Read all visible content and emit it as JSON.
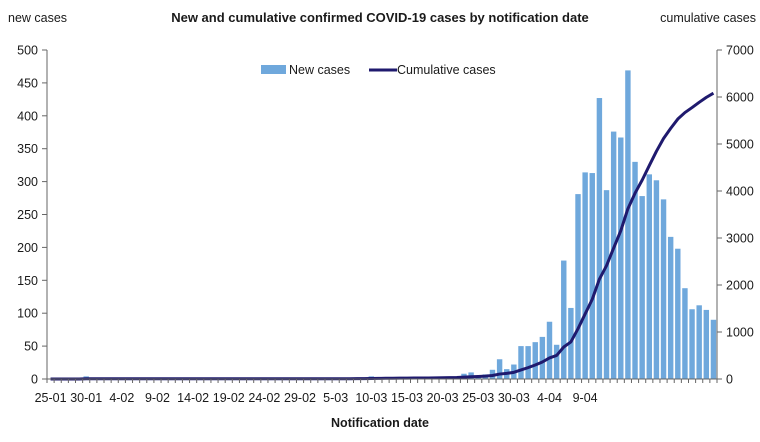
{
  "chart_data": {
    "type": "bar+line",
    "title": "New and cumulative confirmed COVID-19 cases by notification date",
    "y_left_label": "new cases",
    "y_right_label": "cumulative cases",
    "xlabel": "Notification date",
    "x_start": "25-01",
    "x_end": "9-04",
    "x_ticks": [
      "25-01",
      "30-01",
      "4-02",
      "9-02",
      "14-02",
      "19-02",
      "24-02",
      "29-02",
      "5-03",
      "10-03",
      "15-03",
      "20-03",
      "25-03",
      "30-03",
      "4-04",
      "9-04"
    ],
    "y_left_ticks": [
      0,
      50,
      100,
      150,
      200,
      250,
      300,
      350,
      400,
      450,
      500
    ],
    "y_right_ticks": [
      0,
      1000,
      2000,
      3000,
      4000,
      5000,
      6000,
      7000
    ],
    "ylim_left": [
      0,
      500
    ],
    "ylim_right": [
      0,
      7000
    ],
    "grid": false,
    "legend": {
      "placement": "top-center",
      "bar_label": "New cases",
      "line_label": "Cumulative cases"
    },
    "colors": {
      "bar": "#6fa8dc",
      "line": "#1f1a6e",
      "axis": "#666666"
    },
    "series": [
      {
        "name": "New cases",
        "type": "bar",
        "values": [
          0,
          0,
          0,
          0,
          0,
          4,
          0,
          0,
          0,
          0,
          0,
          0,
          0,
          0,
          0,
          0,
          0,
          0,
          0,
          0,
          0,
          0,
          0,
          0,
          0,
          0,
          0,
          0,
          0,
          0,
          0,
          0,
          0,
          0,
          0,
          0,
          0,
          0,
          0,
          0,
          1,
          0,
          1,
          1,
          1,
          4,
          2,
          1,
          1,
          2,
          1,
          1,
          1,
          1,
          2,
          2,
          3,
          2,
          8,
          10,
          5,
          7,
          14,
          30,
          15,
          22,
          50,
          50,
          56,
          64,
          87,
          52,
          180,
          108,
          281,
          314,
          313,
          427,
          287,
          376,
          367,
          469,
          330,
          278,
          311,
          302,
          273,
          216,
          198,
          138,
          106,
          112,
          105,
          90
        ]
      },
      {
        "name": "Cumulative cases",
        "type": "line",
        "values": [
          0,
          0,
          0,
          0,
          0,
          4,
          4,
          4,
          4,
          4,
          4,
          4,
          4,
          4,
          4,
          4,
          4,
          4,
          4,
          4,
          4,
          4,
          4,
          4,
          4,
          4,
          4,
          4,
          4,
          4,
          4,
          4,
          4,
          4,
          4,
          4,
          4,
          4,
          4,
          4,
          5,
          5,
          6,
          7,
          8,
          12,
          14,
          15,
          16,
          18,
          19,
          20,
          21,
          22,
          24,
          26,
          29,
          31,
          39,
          49,
          54,
          61,
          75,
          105,
          120,
          142,
          192,
          242,
          298,
          362,
          449,
          501,
          681,
          789,
          1070,
          1384,
          1697,
          2124,
          2411,
          2787,
          3154,
          3623,
          3953,
          4231,
          4542,
          4844,
          5117,
          5333,
          5531,
          5669,
          5775,
          5887,
          5992,
          6082
        ]
      }
    ]
  }
}
